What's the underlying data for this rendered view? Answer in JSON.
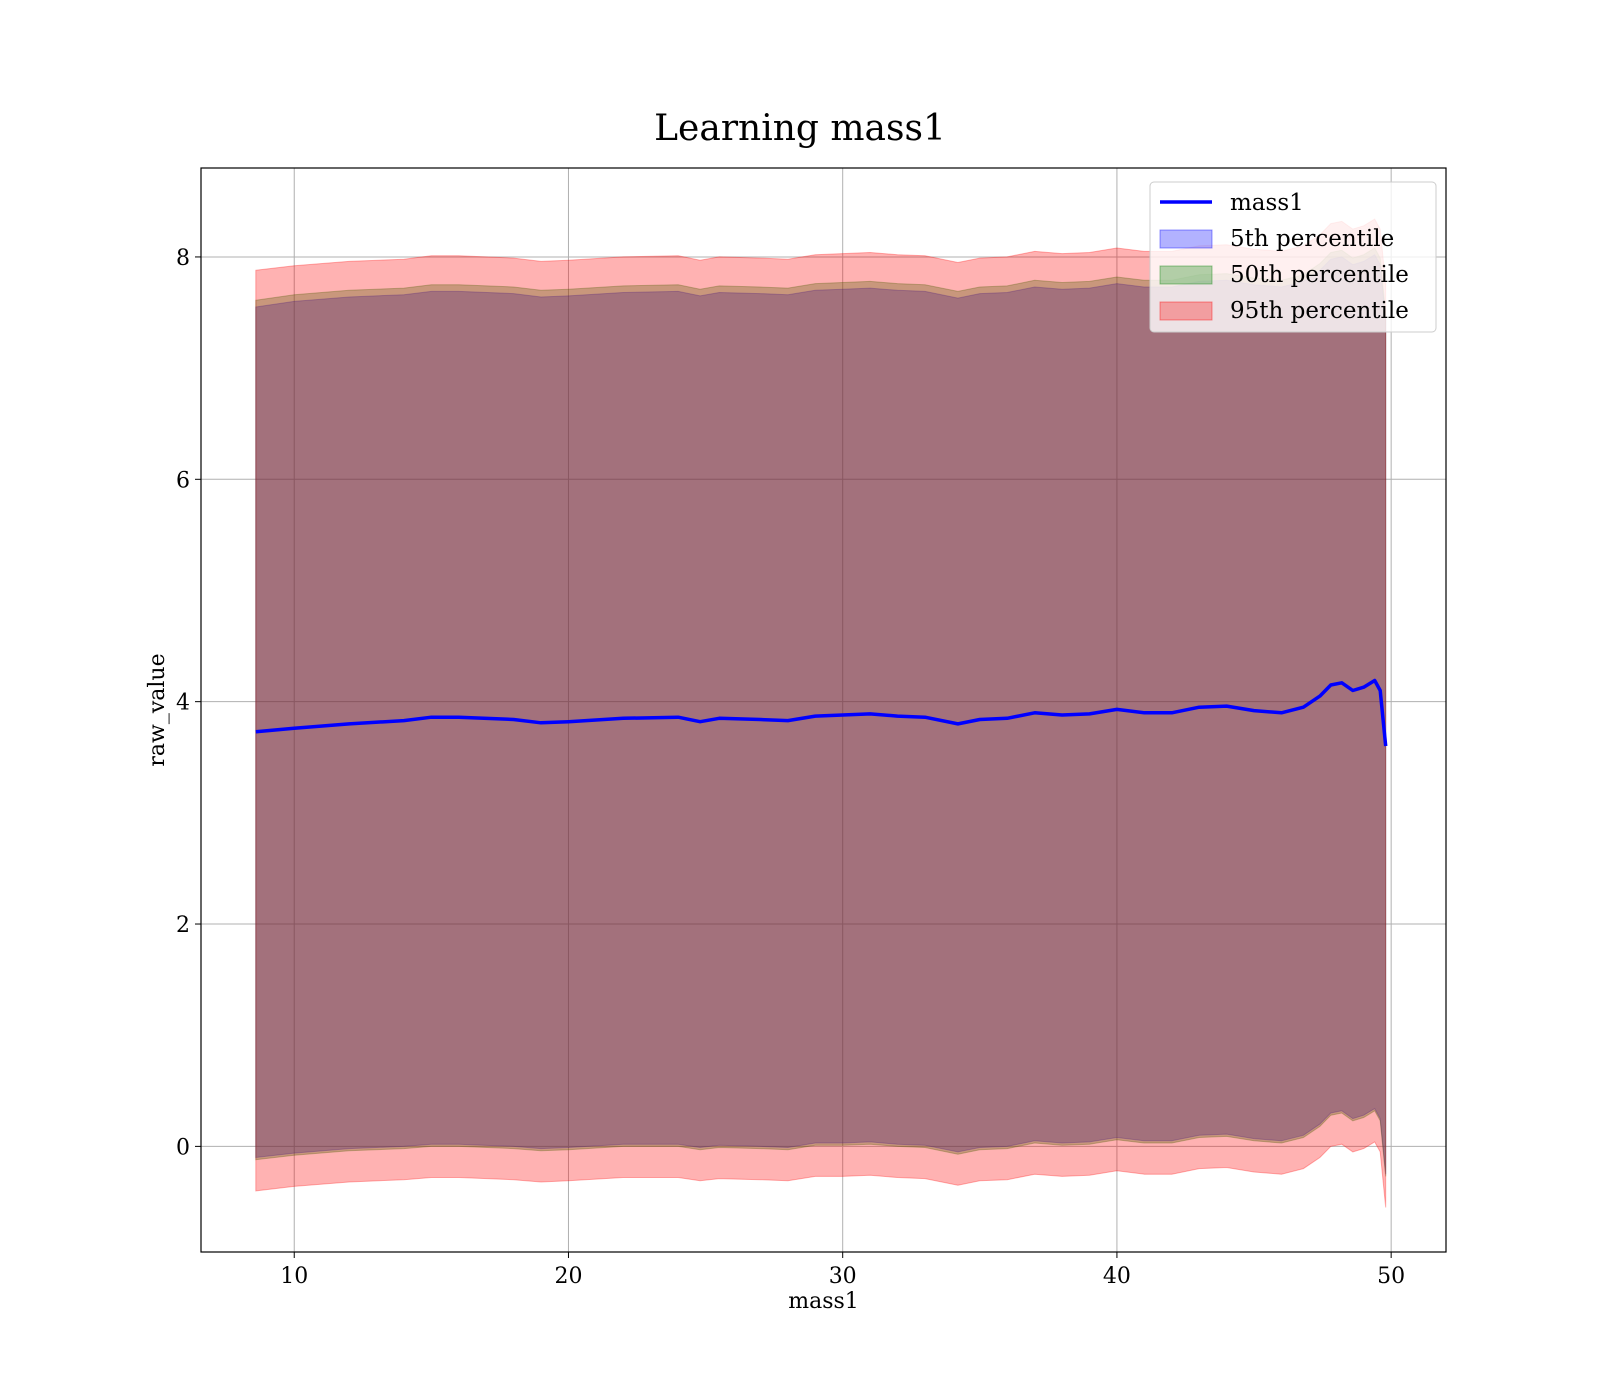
{
  "chart_data": {
    "type": "area",
    "title": "Learning mass1",
    "xlabel": "mass1",
    "ylabel": "raw_value",
    "xlim": [
      6.6,
      52
    ],
    "ylim": [
      -0.95,
      8.8
    ],
    "xticks": [
      10,
      20,
      30,
      40,
      50
    ],
    "yticks": [
      0,
      2,
      4,
      6,
      8
    ],
    "grid": true,
    "legend_position": "top-right",
    "x": [
      8.6,
      10,
      12,
      14,
      15,
      16,
      18,
      19,
      20,
      22,
      24,
      24.8,
      25.5,
      27,
      28,
      29,
      30,
      31,
      32,
      33,
      34.2,
      35,
      36,
      37,
      38,
      39,
      40,
      41,
      42,
      43,
      44,
      45,
      46,
      46.8,
      47.4,
      47.8,
      48.2,
      48.6,
      49,
      49.4,
      49.6,
      49.8
    ],
    "series": [
      {
        "name": "mass1",
        "kind": "line",
        "color": "#0000ff",
        "values": [
          3.73,
          3.76,
          3.8,
          3.83,
          3.86,
          3.86,
          3.84,
          3.81,
          3.82,
          3.85,
          3.86,
          3.82,
          3.85,
          3.84,
          3.83,
          3.87,
          3.88,
          3.89,
          3.87,
          3.86,
          3.8,
          3.84,
          3.85,
          3.9,
          3.88,
          3.89,
          3.93,
          3.9,
          3.9,
          3.95,
          3.96,
          3.92,
          3.9,
          3.95,
          4.05,
          4.15,
          4.17,
          4.1,
          4.13,
          4.19,
          4.1,
          3.6
        ]
      },
      {
        "name": "5th percentile",
        "kind": "band",
        "color": "#0000ff",
        "lower": [
          -0.1,
          -0.06,
          -0.02,
          0.0,
          0.02,
          0.02,
          0.0,
          -0.02,
          -0.01,
          0.02,
          0.02,
          -0.01,
          0.01,
          0.0,
          -0.01,
          0.03,
          0.03,
          0.04,
          0.02,
          0.01,
          -0.05,
          -0.01,
          0.0,
          0.05,
          0.03,
          0.04,
          0.08,
          0.05,
          0.05,
          0.1,
          0.11,
          0.07,
          0.05,
          0.1,
          0.2,
          0.3,
          0.32,
          0.25,
          0.28,
          0.34,
          0.25,
          -0.25
        ],
        "upper": [
          7.55,
          7.6,
          7.64,
          7.66,
          7.69,
          7.69,
          7.67,
          7.64,
          7.65,
          7.68,
          7.69,
          7.65,
          7.68,
          7.67,
          7.66,
          7.7,
          7.71,
          7.72,
          7.7,
          7.69,
          7.63,
          7.67,
          7.68,
          7.73,
          7.71,
          7.72,
          7.76,
          7.73,
          7.73,
          7.78,
          7.79,
          7.75,
          7.73,
          7.78,
          7.88,
          7.98,
          8.0,
          7.93,
          7.96,
          8.02,
          7.93,
          7.43
        ]
      },
      {
        "name": "50th percentile",
        "kind": "band",
        "color": "#008000",
        "lower": [
          -0.12,
          -0.08,
          -0.04,
          -0.02,
          0.0,
          0.0,
          -0.02,
          -0.04,
          -0.03,
          0.0,
          0.0,
          -0.03,
          -0.01,
          -0.02,
          -0.03,
          0.01,
          0.01,
          0.02,
          0.0,
          -0.01,
          -0.07,
          -0.03,
          -0.02,
          0.03,
          0.01,
          0.02,
          0.06,
          0.03,
          0.03,
          0.08,
          0.09,
          0.05,
          0.03,
          0.08,
          0.18,
          0.28,
          0.3,
          0.23,
          0.26,
          0.32,
          0.23,
          -0.27
        ],
        "upper": [
          7.61,
          7.66,
          7.7,
          7.72,
          7.75,
          7.75,
          7.73,
          7.7,
          7.71,
          7.74,
          7.75,
          7.71,
          7.74,
          7.73,
          7.72,
          7.76,
          7.77,
          7.78,
          7.76,
          7.75,
          7.69,
          7.73,
          7.74,
          7.79,
          7.77,
          7.78,
          7.82,
          7.79,
          7.79,
          7.84,
          7.85,
          7.81,
          7.79,
          7.84,
          7.94,
          8.04,
          8.06,
          7.99,
          8.02,
          8.08,
          7.99,
          7.49
        ]
      },
      {
        "name": "95th percentile",
        "kind": "band",
        "color": "#ff0000",
        "lower": [
          -0.4,
          -0.36,
          -0.32,
          -0.3,
          -0.28,
          -0.28,
          -0.3,
          -0.32,
          -0.31,
          -0.28,
          -0.28,
          -0.31,
          -0.29,
          -0.3,
          -0.31,
          -0.27,
          -0.27,
          -0.26,
          -0.28,
          -0.29,
          -0.35,
          -0.31,
          -0.3,
          -0.25,
          -0.27,
          -0.26,
          -0.22,
          -0.25,
          -0.25,
          -0.2,
          -0.19,
          -0.23,
          -0.25,
          -0.2,
          -0.1,
          0.0,
          0.02,
          -0.05,
          -0.02,
          0.04,
          -0.05,
          -0.55
        ],
        "upper": [
          7.88,
          7.92,
          7.96,
          7.98,
          8.01,
          8.01,
          7.99,
          7.96,
          7.97,
          8.0,
          8.01,
          7.97,
          8.0,
          7.99,
          7.98,
          8.02,
          8.03,
          8.04,
          8.02,
          8.01,
          7.95,
          7.99,
          8.0,
          8.05,
          8.03,
          8.04,
          8.08,
          8.05,
          8.05,
          8.1,
          8.11,
          8.07,
          8.05,
          8.1,
          8.2,
          8.3,
          8.32,
          8.25,
          8.28,
          8.34,
          8.25,
          7.75
        ]
      }
    ]
  }
}
